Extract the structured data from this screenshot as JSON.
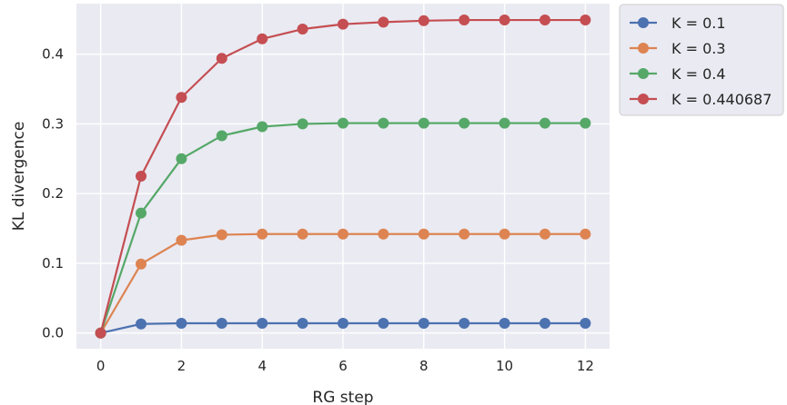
{
  "chart_data": {
    "type": "line",
    "xlabel": "RG step",
    "ylabel": "KL divergence",
    "xlim": [
      -0.6,
      12.6
    ],
    "ylim": [
      -0.0225,
      0.4725
    ],
    "xticks": [
      0,
      2,
      4,
      6,
      8,
      10,
      12
    ],
    "yticks": [
      0.0,
      0.1,
      0.2,
      0.3,
      0.4
    ],
    "ytick_labels": [
      "0.0",
      "0.1",
      "0.2",
      "0.3",
      "0.4"
    ],
    "grid": true,
    "legend_position": "outside upper right",
    "x": [
      0,
      1,
      2,
      3,
      4,
      5,
      6,
      7,
      8,
      9,
      10,
      11,
      12
    ],
    "series": [
      {
        "name": "K = 0.1",
        "color": "#4c72b0",
        "values": [
          0.0,
          0.013,
          0.014,
          0.014,
          0.014,
          0.014,
          0.014,
          0.014,
          0.014,
          0.014,
          0.014,
          0.014,
          0.014
        ]
      },
      {
        "name": "K = 0.3",
        "color": "#dd8452",
        "values": [
          0.0,
          0.099,
          0.133,
          0.141,
          0.142,
          0.142,
          0.142,
          0.142,
          0.142,
          0.142,
          0.142,
          0.142,
          0.142
        ]
      },
      {
        "name": "K = 0.4",
        "color": "#55a868",
        "values": [
          0.0,
          0.172,
          0.25,
          0.283,
          0.296,
          0.3,
          0.301,
          0.301,
          0.301,
          0.301,
          0.301,
          0.301,
          0.301
        ]
      },
      {
        "name": "K = 0.440687",
        "color": "#c44e52",
        "values": [
          0.0,
          0.225,
          0.338,
          0.394,
          0.422,
          0.436,
          0.443,
          0.446,
          0.448,
          0.449,
          0.449,
          0.449,
          0.449
        ]
      }
    ]
  }
}
